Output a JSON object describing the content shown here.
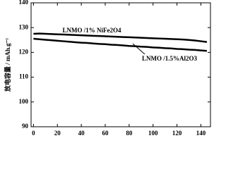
{
  "chart_data": {
    "type": "line",
    "y_label": "放电容量 / mAh.g⁻¹",
    "x": [
      0,
      5,
      10,
      15,
      20,
      25,
      30,
      35,
      40,
      45,
      50,
      55,
      60,
      65,
      70,
      75,
      80,
      85,
      90,
      95,
      100,
      105,
      110,
      115,
      120,
      125,
      130,
      135,
      140,
      145
    ],
    "series": [
      {
        "name": "LNMO /1% NiFe2O4",
        "color": "#000000",
        "values": [
          127.5,
          127.6,
          127.5,
          127.4,
          127.3,
          127.2,
          127.1,
          127.0,
          126.9,
          126.8,
          126.7,
          126.6,
          126.5,
          126.4,
          126.3,
          126.2,
          126.1,
          126.0,
          125.9,
          125.8,
          125.7,
          125.6,
          125.5,
          125.4,
          125.3,
          125.2,
          125.0,
          124.8,
          124.5,
          124.2
        ]
      },
      {
        "name": "LNMO /1.5%Al2O3",
        "color": "#000000",
        "values": [
          125.5,
          125.3,
          125.1,
          124.9,
          124.7,
          124.5,
          124.3,
          124.1,
          123.9,
          123.8,
          123.6,
          123.4,
          123.3,
          123.1,
          123.0,
          122.8,
          122.6,
          122.5,
          122.3,
          122.2,
          122.0,
          121.9,
          121.7,
          121.6,
          121.4,
          121.3,
          121.1,
          121.0,
          120.8,
          120.6
        ]
      }
    ],
    "xlim": [
      -2,
      148
    ],
    "xticks": [
      0,
      20,
      40,
      60,
      80,
      100,
      120,
      140
    ],
    "ylim": [
      90,
      140
    ],
    "yticks": [
      90,
      100,
      110,
      120,
      130,
      140
    ]
  }
}
